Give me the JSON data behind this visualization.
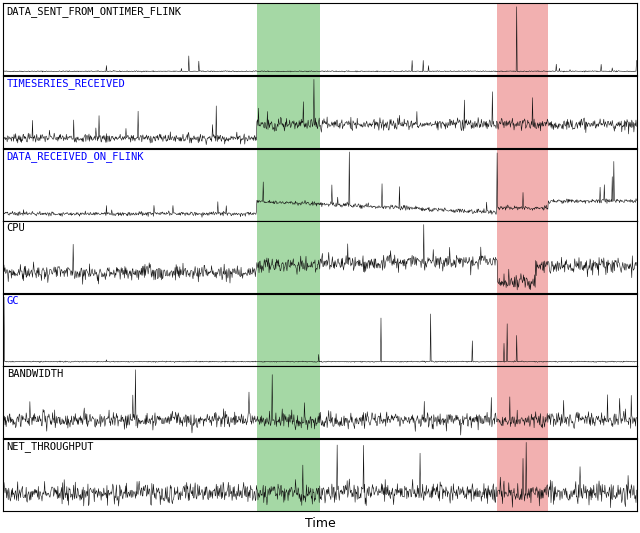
{
  "series_labels": [
    "DATA_SENT_FROM_ONTIMER_FLINK",
    "TIMESERIES_RECEIVED",
    "DATA_RECEIVED_ON_FLINK",
    "CPU",
    "GC",
    "BANDWIDTH",
    "NET_THROUGHPUT"
  ],
  "blue_labels": [
    false,
    true,
    true,
    false,
    true,
    false,
    false
  ],
  "n_points": 1200,
  "green_region": [
    0.4,
    0.5
  ],
  "red_region": [
    0.78,
    0.86
  ],
  "background_color": "#ffffff",
  "line_color": "#111111",
  "green_color": "#5cb85c",
  "red_color": "#e87070",
  "green_alpha": 0.55,
  "red_alpha": 0.55,
  "xlabel": "Time",
  "xlabel_fontsize": 9,
  "label_fontsize": 7.5,
  "fig_width": 6.4,
  "fig_height": 5.33,
  "dpi": 100
}
